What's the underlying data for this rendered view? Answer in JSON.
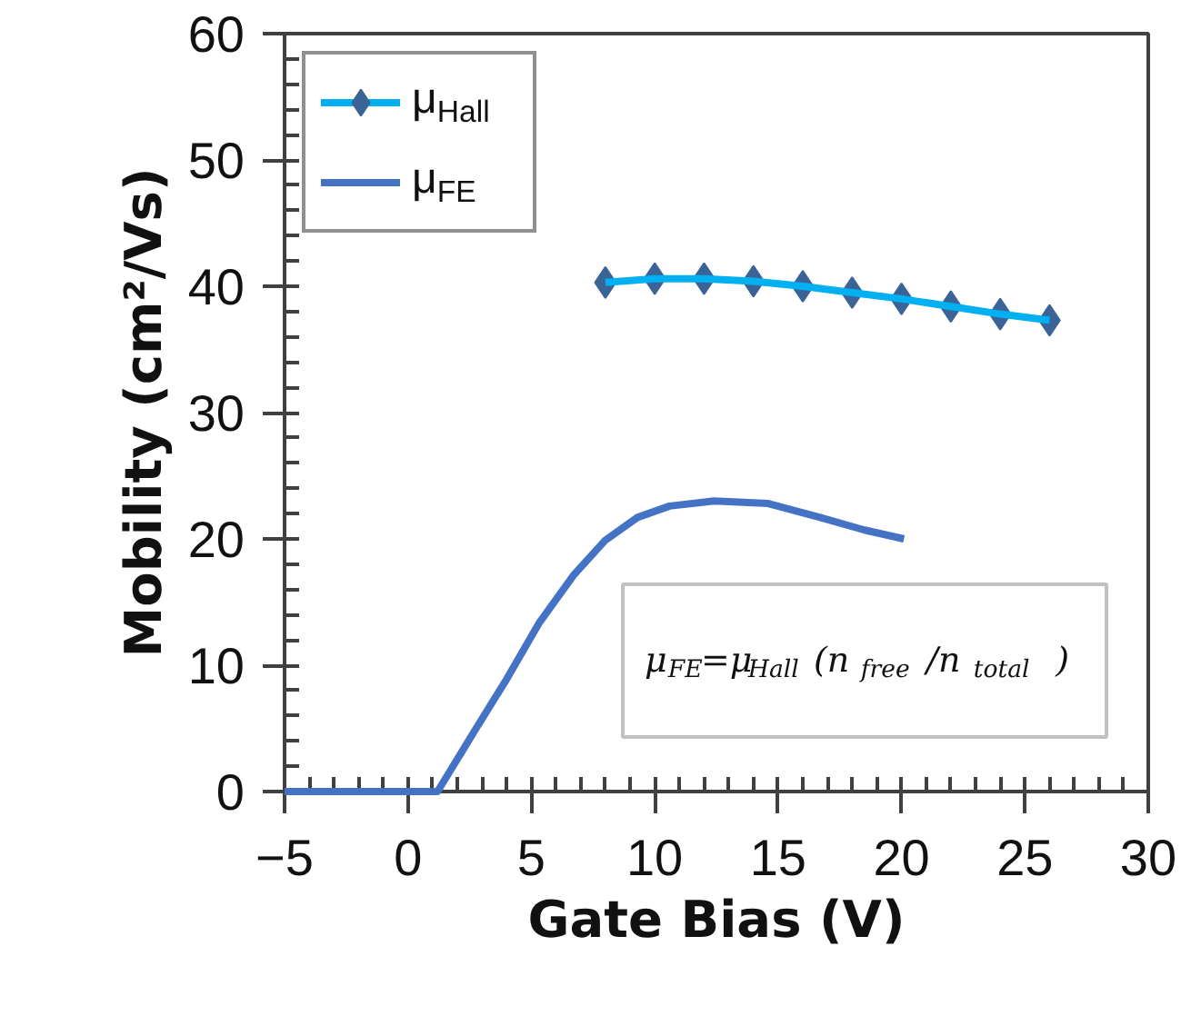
{
  "chart_data": {
    "type": "line",
    "xlabel": "Gate Bias (V)",
    "ylabel": "Mobility (cm²/Vs)",
    "xlim": [
      -5,
      30
    ],
    "ylim": [
      0,
      60
    ],
    "xticks": [
      -5,
      0,
      5,
      10,
      15,
      20,
      25,
      30
    ],
    "yticks": [
      0,
      10,
      20,
      30,
      40,
      50,
      60
    ],
    "grid": false,
    "legend": "top left",
    "series": [
      {
        "name": "μ$_{Hall}$",
        "color": "#00b0f0",
        "marker": "diamond",
        "colors": [
          "#3b6496",
          "#3b6496",
          "#3b6496",
          "#3b6496",
          "#3b6496",
          "#3b6496",
          "#3b6496",
          "#3b6496",
          "#3b6496",
          "#3b6496"
        ],
        "x": [
          8,
          10,
          12,
          14,
          16,
          18,
          20,
          22,
          24,
          26
        ],
        "values": [
          40.3,
          40.6,
          40.6,
          40.4,
          40.0,
          39.5,
          39.0,
          38.4,
          37.8,
          37.3
        ]
      },
      {
        "name": "μ$_{FE}$",
        "color": "#4472c4",
        "marker": "none",
        "x": [
          -5,
          -2,
          1.2,
          2.7,
          4.0,
          5.3,
          6.7,
          8.0,
          9.3,
          10.6,
          12.4,
          14.6,
          16.7,
          18.5,
          20.1
        ],
        "values": [
          0,
          0,
          0,
          4.8,
          8.9,
          13.3,
          17.1,
          19.9,
          21.7,
          22.6,
          23.0,
          22.8,
          21.7,
          20.7,
          20.0
        ]
      }
    ],
    "annotations": [
      "μ$_{FE}$=μ$_{Hall}$(n$_{free}$/n$_{total}$)"
    ]
  }
}
